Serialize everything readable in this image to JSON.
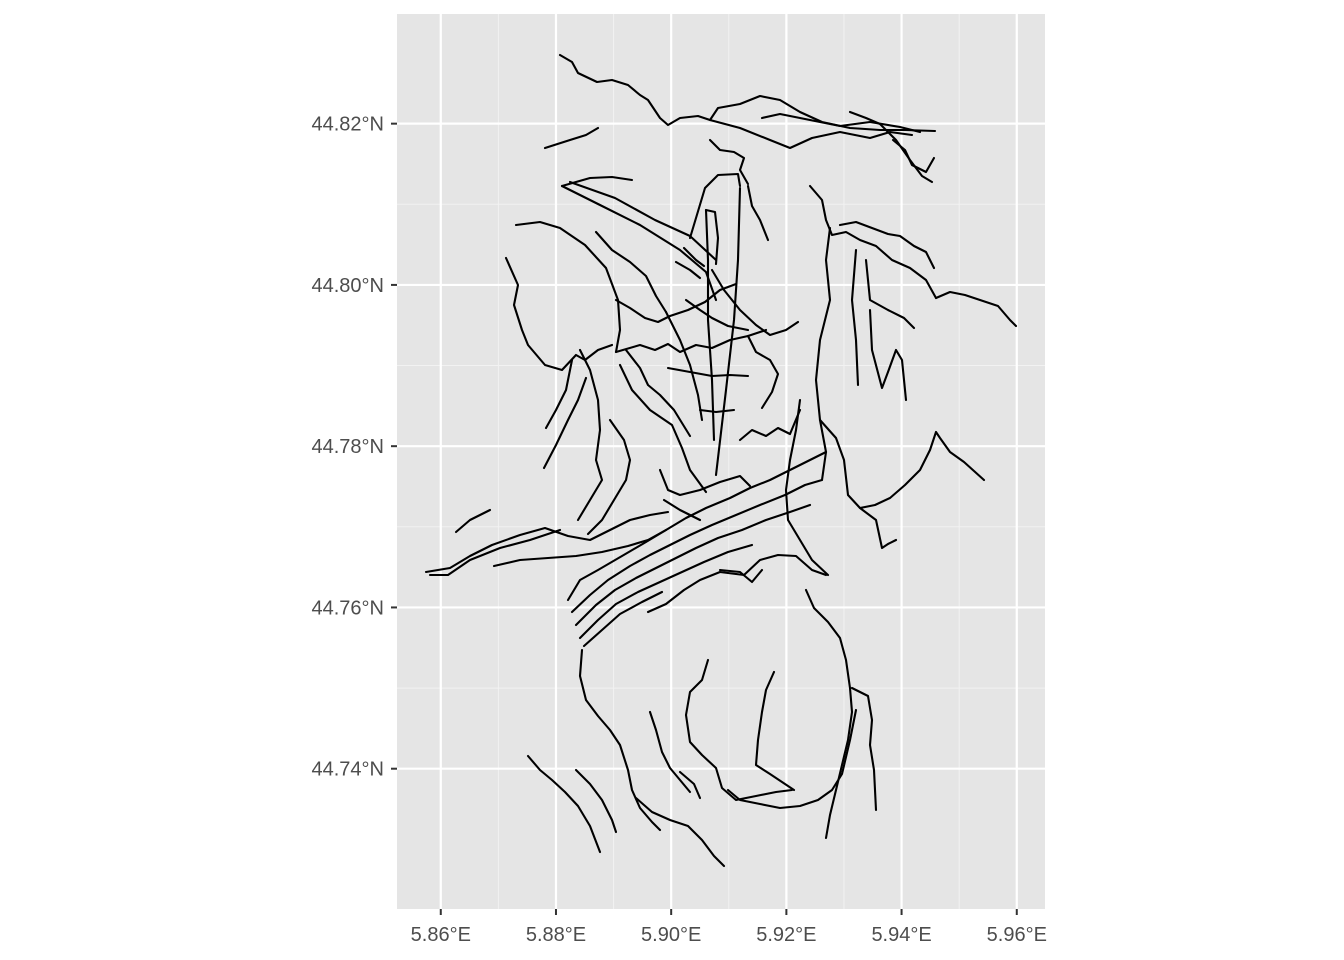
{
  "colors": {
    "panel_background": "#e5e5e5",
    "gridline_major": "#ffffff",
    "gridline_minor": "#f2f2f2",
    "feature_stroke": "#000000",
    "tick_text": "#4d4d4d",
    "page_background": "#ffffff"
  },
  "map": {
    "type": "line features map (ggplot2 geom_sf style)",
    "x_axis": {
      "ticks": [
        {
          "value": 5.86,
          "label": "5.86°E"
        },
        {
          "value": 5.88,
          "label": "5.88°E"
        },
        {
          "value": 5.9,
          "label": "5.90°E"
        },
        {
          "value": 5.92,
          "label": "5.92°E"
        },
        {
          "value": 5.94,
          "label": "5.94°E"
        },
        {
          "value": 5.96,
          "label": "5.96°E"
        }
      ],
      "range": [
        5.8524,
        5.9649
      ]
    },
    "y_axis": {
      "ticks": [
        {
          "value": 44.74,
          "label": "44.74°N"
        },
        {
          "value": 44.76,
          "label": "44.76°N"
        },
        {
          "value": 44.78,
          "label": "44.78°N"
        },
        {
          "value": 44.8,
          "label": "44.80°N"
        },
        {
          "value": 44.82,
          "label": "44.82°N"
        }
      ],
      "range": [
        44.7226,
        44.8336
      ]
    },
    "grid": true,
    "legend": "none"
  }
}
